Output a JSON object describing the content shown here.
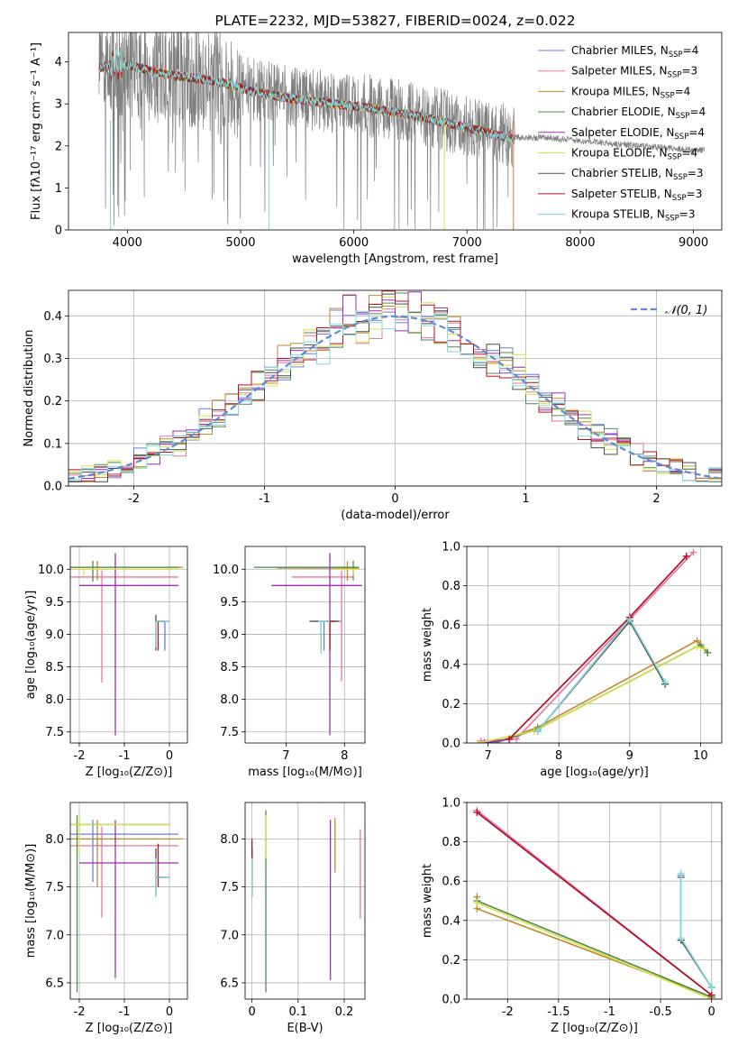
{
  "colors": {
    "Chabrier MILES": "#6a7fdc",
    "Salpeter MILES": "#e875a6",
    "Kroupa MILES": "#c08a2c",
    "Chabrier ELODIE": "#4f8a4f",
    "Salpeter ELODIE": "#9b2fb0",
    "Kroupa ELODIE": "#d8e04c",
    "Chabrier STELIB": "#4a4a4a",
    "Salpeter STELIB": "#b5141c",
    "Kroupa STELIB": "#7fdada",
    "data": "#808080",
    "normal": "#5b8bd6",
    "extra": "#e8792a"
  },
  "chart_data": [
    {
      "id": "spectrum",
      "type": "line",
      "title": "PLATE=2232, MJD=53827, FIBERID=0024, z=0.022",
      "xlabel": "wavelength [Angstrom, rest frame]",
      "ylabel": "Flux [fλ10⁻¹⁷ erg cm⁻² s⁻¹ A⁻¹]",
      "xlim": [
        3480,
        9250
      ],
      "ylim": [
        0,
        4.7
      ],
      "xticks": [
        4000,
        5000,
        6000,
        7000,
        8000,
        9000
      ],
      "yticks": [
        0,
        1,
        2,
        3,
        4
      ],
      "legend": "top-right",
      "legend_entries": [
        {
          "label": "Chabrier MILES, N",
          "sub": "SSP",
          "suffix": "=4"
        },
        {
          "label": "Salpeter MILES, N",
          "sub": "SSP",
          "suffix": "=3"
        },
        {
          "label": "Kroupa MILES, N",
          "sub": "SSP",
          "suffix": "=4"
        },
        {
          "label": "Chabrier ELODIE, N",
          "sub": "SSP",
          "suffix": "=4"
        },
        {
          "label": "Salpeter ELODIE, N",
          "sub": "SSP",
          "suffix": "=4"
        },
        {
          "label": "Kroupa ELODIE, N",
          "sub": "SSP",
          "suffix": "=4"
        },
        {
          "label": "Chabrier STELIB, N",
          "sub": "SSP",
          "suffix": "=3"
        },
        {
          "label": "Salpeter STELIB, N",
          "sub": "SSP",
          "suffix": "=3"
        },
        {
          "label": "Kroupa STELIB, N",
          "sub": "SSP",
          "suffix": "=3"
        }
      ],
      "data_range": [
        3750,
        9100
      ],
      "model_range": [
        3750,
        7420
      ],
      "continuum": [
        [
          3750,
          3.9
        ],
        [
          3900,
          4.0
        ],
        [
          4050,
          3.95
        ],
        [
          4250,
          3.8
        ],
        [
          4500,
          3.7
        ],
        [
          4850,
          3.55
        ],
        [
          5100,
          3.35
        ],
        [
          5500,
          3.15
        ],
        [
          6000,
          3.0
        ],
        [
          6500,
          2.8
        ],
        [
          6900,
          2.55
        ],
        [
          7200,
          2.35
        ],
        [
          7420,
          2.2
        ],
        [
          7700,
          2.2
        ],
        [
          8000,
          2.12
        ],
        [
          8500,
          2.0
        ],
        [
          9000,
          1.9
        ],
        [
          9100,
          1.9
        ]
      ]
    },
    {
      "id": "residuals",
      "type": "histogram",
      "xlabel": "(data-model)/error",
      "ylabel": "Normed distribution",
      "xlim": [
        -2.5,
        2.5
      ],
      "ylim": [
        0,
        0.46
      ],
      "xticks": [
        -2,
        -1,
        0,
        1,
        2
      ],
      "yticks": [
        0.0,
        0.1,
        0.2,
        0.3,
        0.4
      ],
      "legend": "top-right",
      "normal_label": "𝒩(0, 1)",
      "bin_width": 0.1
    },
    {
      "id": "age-vs-Z",
      "type": "errorbar",
      "xlabel": "Z [log₁₀(Z/Z⊙)]",
      "ylabel": "age  [log₁₀(age/yr)]",
      "xlim": [
        -2.2,
        0.4
      ],
      "ylim": [
        7.33,
        10.35
      ],
      "xticks": [
        -2,
        -1,
        0
      ],
      "yticks": [
        7.5,
        8.0,
        8.5,
        9.0,
        9.5,
        10.0
      ],
      "bars": [
        {
          "model": "Chabrier MILES",
          "x": -0.1,
          "xerr": [
            0.1,
            0.0
          ],
          "y": 9.2,
          "yerr": [
            0.45,
            0.0
          ]
        },
        {
          "model": "Salpeter MILES",
          "x": -1.5,
          "xerr": [
            0.7,
            1.7
          ],
          "y": 9.88,
          "yerr": [
            1.62,
            0.1
          ]
        },
        {
          "model": "Kroupa MILES",
          "x": -1.6,
          "xerr": [
            0.6,
            1.9
          ],
          "y": 10.03,
          "yerr": [
            0.2,
            0.1
          ]
        },
        {
          "model": "Chabrier ELODIE",
          "x": -1.7,
          "xerr": [
            0.5,
            1.9
          ],
          "y": 10.03,
          "yerr": [
            0.22,
            0.1
          ]
        },
        {
          "model": "Salpeter ELODIE",
          "x": -1.2,
          "xerr": [
            0.8,
            1.4
          ],
          "y": 9.75,
          "yerr": [
            2.3,
            0.5
          ]
        },
        {
          "model": "Kroupa ELODIE",
          "x": -1.9,
          "xerr": [
            0.3,
            2.1
          ],
          "y": 10.0,
          "yerr": [
            0.1,
            0.0
          ]
        },
        {
          "model": "Chabrier STELIB",
          "x": -0.3,
          "xerr": [
            0.0,
            0.3
          ],
          "y": 9.2,
          "yerr": [
            0.45,
            0.1
          ]
        },
        {
          "model": "Salpeter STELIB",
          "x": -0.25,
          "xerr": [
            0.05,
            0.15
          ],
          "y": 9.2,
          "yerr": [
            0.45,
            0.0
          ]
        },
        {
          "model": "Kroupa STELIB",
          "x": -0.3,
          "xerr": [
            0.0,
            0.3
          ],
          "y": 9.2,
          "yerr": [
            0.4,
            0.0
          ]
        }
      ]
    },
    {
      "id": "age-vs-mass",
      "type": "errorbar",
      "xlabel": "mass [log₁₀(M/M⊙)]",
      "ylabel": "",
      "xlim": [
        6.3,
        8.35
      ],
      "ylim": [
        7.33,
        10.35
      ],
      "xticks": [
        7,
        8
      ],
      "yticks": [
        7.5,
        8.0,
        8.5,
        9.0,
        9.5,
        10.0
      ],
      "bars": [
        {
          "model": "Chabrier MILES",
          "x": 7.65,
          "xerr": [
            0.2,
            0.3
          ],
          "y": 9.2,
          "yerr": [
            0.45,
            0.0
          ]
        },
        {
          "model": "Salpeter MILES",
          "x": 7.95,
          "xerr": [
            0.85,
            0.2
          ],
          "y": 9.88,
          "yerr": [
            1.6,
            0.1
          ]
        },
        {
          "model": "Kroupa MILES",
          "x": 8.05,
          "xerr": [
            1.2,
            0.2
          ],
          "y": 10.02,
          "yerr": [
            0.2,
            0.1
          ]
        },
        {
          "model": "Chabrier ELODIE",
          "x": 8.15,
          "xerr": [
            1.7,
            0.1
          ],
          "y": 10.03,
          "yerr": [
            0.2,
            0.1
          ]
        },
        {
          "model": "Salpeter ELODIE",
          "x": 7.75,
          "xerr": [
            1.0,
            0.55
          ],
          "y": 9.75,
          "yerr": [
            2.3,
            0.5
          ]
        },
        {
          "model": "Kroupa ELODIE",
          "x": 8.15,
          "xerr": [
            0.3,
            0.1
          ],
          "y": 10.0,
          "yerr": [
            0.1,
            0.0
          ]
        },
        {
          "model": "Chabrier STELIB",
          "x": 7.6,
          "xerr": [
            0.2,
            0.3
          ],
          "y": 9.2,
          "yerr": [
            0.45,
            0.0
          ]
        },
        {
          "model": "Salpeter STELIB",
          "x": 7.75,
          "xerr": [
            0.05,
            0.1
          ],
          "y": 9.2,
          "yerr": [
            0.45,
            0.0
          ]
        },
        {
          "model": "Kroupa STELIB",
          "x": 7.6,
          "xerr": [
            0.05,
            0.15
          ],
          "y": 9.2,
          "yerr": [
            0.5,
            0.0
          ]
        }
      ]
    },
    {
      "id": "weight-vs-age",
      "type": "line",
      "xlabel": "age  [log₁₀(age/yr)]",
      "ylabel": "mass weight",
      "xlim": [
        6.7,
        10.3
      ],
      "ylim": [
        0,
        1.0
      ],
      "xticks": [
        7,
        8,
        9,
        10
      ],
      "yticks": [
        0.0,
        0.2,
        0.4,
        0.6,
        0.8,
        1.0
      ],
      "series": [
        {
          "model": "Chabrier MILES",
          "points": [
            [
              7.7,
              0.06
            ],
            [
              9.0,
              0.63
            ],
            [
              9.5,
              0.3
            ]
          ]
        },
        {
          "model": "Salpeter MILES",
          "points": [
            [
              6.9,
              0.01
            ],
            [
              7.4,
              0.02
            ],
            [
              9.9,
              0.97
            ]
          ]
        },
        {
          "model": "Kroupa MILES",
          "points": [
            [
              7.1,
              0.0
            ],
            [
              7.7,
              0.08
            ],
            [
              9.95,
              0.52
            ],
            [
              10.1,
              0.46
            ]
          ]
        },
        {
          "model": "Chabrier ELODIE",
          "points": [
            [
              7.1,
              0.0
            ],
            [
              7.7,
              0.07
            ],
            [
              10.0,
              0.5
            ],
            [
              10.1,
              0.46
            ]
          ]
        },
        {
          "model": "Salpeter ELODIE",
          "points": [
            [
              6.95,
              0.0
            ],
            [
              7.3,
              0.02
            ],
            [
              9.0,
              0.64
            ],
            [
              9.8,
              0.95
            ]
          ]
        },
        {
          "model": "Kroupa ELODIE",
          "points": [
            [
              6.85,
              0.0
            ],
            [
              7.65,
              0.06
            ],
            [
              9.95,
              0.49
            ],
            [
              10.05,
              0.48
            ]
          ]
        },
        {
          "model": "Chabrier STELIB",
          "points": [
            [
              7.7,
              0.06
            ],
            [
              9.0,
              0.62
            ],
            [
              9.5,
              0.3
            ]
          ]
        },
        {
          "model": "Salpeter STELIB",
          "points": [
            [
              7.3,
              0.02
            ],
            [
              9.0,
              0.64
            ],
            [
              9.8,
              0.95
            ]
          ]
        },
        {
          "model": "Kroupa STELIB",
          "points": [
            [
              7.7,
              0.06
            ],
            [
              9.0,
              0.63
            ],
            [
              9.5,
              0.31
            ]
          ]
        }
      ]
    },
    {
      "id": "mass-vs-Z",
      "type": "errorbar",
      "xlabel": "Z [log₁₀(Z/Z⊙)]",
      "ylabel": "mass [log₁₀(M/M⊙)]",
      "xlim": [
        -2.2,
        0.4
      ],
      "ylim": [
        6.33,
        8.38
      ],
      "xticks": [
        -2,
        -1,
        0
      ],
      "yticks": [
        6.5,
        7.0,
        7.5,
        8.0
      ],
      "bars": [
        {
          "model": "Chabrier MILES",
          "x": -1.7,
          "xerr": [
            0.5,
            1.9
          ],
          "y": 8.05,
          "yerr": [
            0.5,
            0.15
          ]
        },
        {
          "model": "Salpeter MILES",
          "x": -1.5,
          "xerr": [
            0.7,
            1.7
          ],
          "y": 7.93,
          "yerr": [
            0.75,
            0.2
          ]
        },
        {
          "model": "Kroupa MILES",
          "x": -1.6,
          "xerr": [
            0.6,
            1.9
          ],
          "y": 8.0,
          "yerr": [
            0.5,
            0.2
          ]
        },
        {
          "model": "Chabrier ELODIE",
          "x": -2.05,
          "xerr": [
            0.15,
            2.05
          ],
          "y": 8.15,
          "yerr": [
            1.75,
            0.1
          ]
        },
        {
          "model": "Salpeter ELODIE",
          "x": -1.2,
          "xerr": [
            0.8,
            1.4
          ],
          "y": 7.75,
          "yerr": [
            1.2,
            0.45
          ]
        },
        {
          "model": "Kroupa ELODIE",
          "x": -2.0,
          "xerr": [
            0.2,
            2.0
          ],
          "y": 8.15,
          "yerr": [
            0.3,
            0.1
          ]
        },
        {
          "model": "Chabrier STELIB",
          "x": -0.3,
          "xerr": [
            0.0,
            0.3
          ],
          "y": 7.6,
          "yerr": [
            0.2,
            0.3
          ]
        },
        {
          "model": "Salpeter STELIB",
          "x": -0.25,
          "xerr": [
            0.05,
            0.15
          ],
          "y": 7.6,
          "yerr": [
            0.1,
            0.35
          ]
        },
        {
          "model": "Kroupa STELIB",
          "x": -0.3,
          "xerr": [
            0.0,
            0.3
          ],
          "y": 7.6,
          "yerr": [
            0.2,
            0.2
          ]
        }
      ]
    },
    {
      "id": "ebv",
      "type": "errorbar",
      "xlabel": "E(B-V)",
      "ylabel": "",
      "xlim": [
        -0.015,
        0.245
      ],
      "ylim": [
        6.33,
        8.38
      ],
      "xticks": [
        0.0,
        0.1,
        0.2
      ],
      "yticks": [
        6.5,
        7.0,
        7.5,
        8.0
      ],
      "bars": [
        {
          "model": "Chabrier MILES",
          "x": 0.0,
          "xerr": [
            0,
            0
          ],
          "y": 7.6,
          "yerr": [
            0.2,
            0.3
          ]
        },
        {
          "model": "Salpeter MILES",
          "x": 0.235,
          "xerr": [
            0,
            0
          ],
          "y": 7.6,
          "yerr": [
            0.43,
            0.5
          ]
        },
        {
          "model": "Kroupa MILES",
          "x": 0.18,
          "xerr": [
            0,
            0
          ],
          "y": 8.0,
          "yerr": [
            0.35,
            0.22
          ]
        },
        {
          "model": "Chabrier ELODIE",
          "x": 0.03,
          "xerr": [
            0,
            0
          ],
          "y": 8.1,
          "yerr": [
            1.7,
            0.2
          ]
        },
        {
          "model": "Salpeter ELODIE",
          "x": 0.17,
          "xerr": [
            0,
            0
          ],
          "y": 7.6,
          "yerr": [
            1.07,
            0.6
          ]
        },
        {
          "model": "Kroupa ELODIE",
          "x": 0.03,
          "xerr": [
            0,
            0
          ],
          "y": 8.1,
          "yerr": [
            0.3,
            0.15
          ]
        },
        {
          "model": "Chabrier STELIB",
          "x": 0.0,
          "xerr": [
            0,
            0
          ],
          "y": 7.6,
          "yerr": [
            0.2,
            0.3
          ]
        },
        {
          "model": "Salpeter STELIB",
          "x": 0.0,
          "xerr": [
            0,
            0
          ],
          "y": 7.6,
          "yerr": [
            0.1,
            0.4
          ]
        },
        {
          "model": "Kroupa STELIB",
          "x": 0.0,
          "xerr": [
            0,
            0
          ],
          "y": 7.6,
          "yerr": [
            0.2,
            0.2
          ]
        }
      ]
    },
    {
      "id": "weight-vs-Z",
      "type": "line",
      "xlabel": "Z [log₁₀(Z/Z⊙)]",
      "ylabel": "mass weight",
      "xlim": [
        -2.4,
        0.1
      ],
      "ylim": [
        0,
        1.0
      ],
      "xticks": [
        -2.0,
        -1.5,
        -1.0,
        -0.5,
        0.0
      ],
      "yticks": [
        0.0,
        0.2,
        0.4,
        0.6,
        0.8,
        1.0
      ],
      "series": [
        {
          "model": "Chabrier MILES",
          "points": [
            [
              -0.3,
              0.63
            ],
            [
              -0.3,
              0.3
            ],
            [
              0.0,
              0.06
            ]
          ]
        },
        {
          "model": "Salpeter MILES",
          "points": [
            [
              -2.3,
              0.96
            ],
            [
              0.0,
              0.02
            ]
          ]
        },
        {
          "model": "Kroupa MILES",
          "points": [
            [
              -2.3,
              0.52
            ],
            [
              -2.3,
              0.46
            ],
            [
              0.0,
              0.01
            ]
          ]
        },
        {
          "model": "Chabrier ELODIE",
          "points": [
            [
              -2.3,
              0.5
            ],
            [
              0.0,
              0.01
            ]
          ]
        },
        {
          "model": "Salpeter ELODIE",
          "points": [
            [
              -2.3,
              0.95
            ],
            [
              0.0,
              0.02
            ]
          ]
        },
        {
          "model": "Kroupa ELODIE",
          "points": [
            [
              -2.3,
              0.49
            ],
            [
              0.0,
              0.0
            ]
          ]
        },
        {
          "model": "Chabrier STELIB",
          "points": [
            [
              -0.3,
              0.62
            ],
            [
              -0.3,
              0.3
            ],
            [
              0.0,
              0.06
            ]
          ]
        },
        {
          "model": "Salpeter STELIB",
          "points": [
            [
              -2.3,
              0.95
            ],
            [
              0.0,
              0.02
            ]
          ]
        },
        {
          "model": "Kroupa STELIB",
          "points": [
            [
              -0.3,
              0.64
            ],
            [
              -0.3,
              0.31
            ],
            [
              0.0,
              0.06
            ]
          ]
        }
      ]
    }
  ]
}
